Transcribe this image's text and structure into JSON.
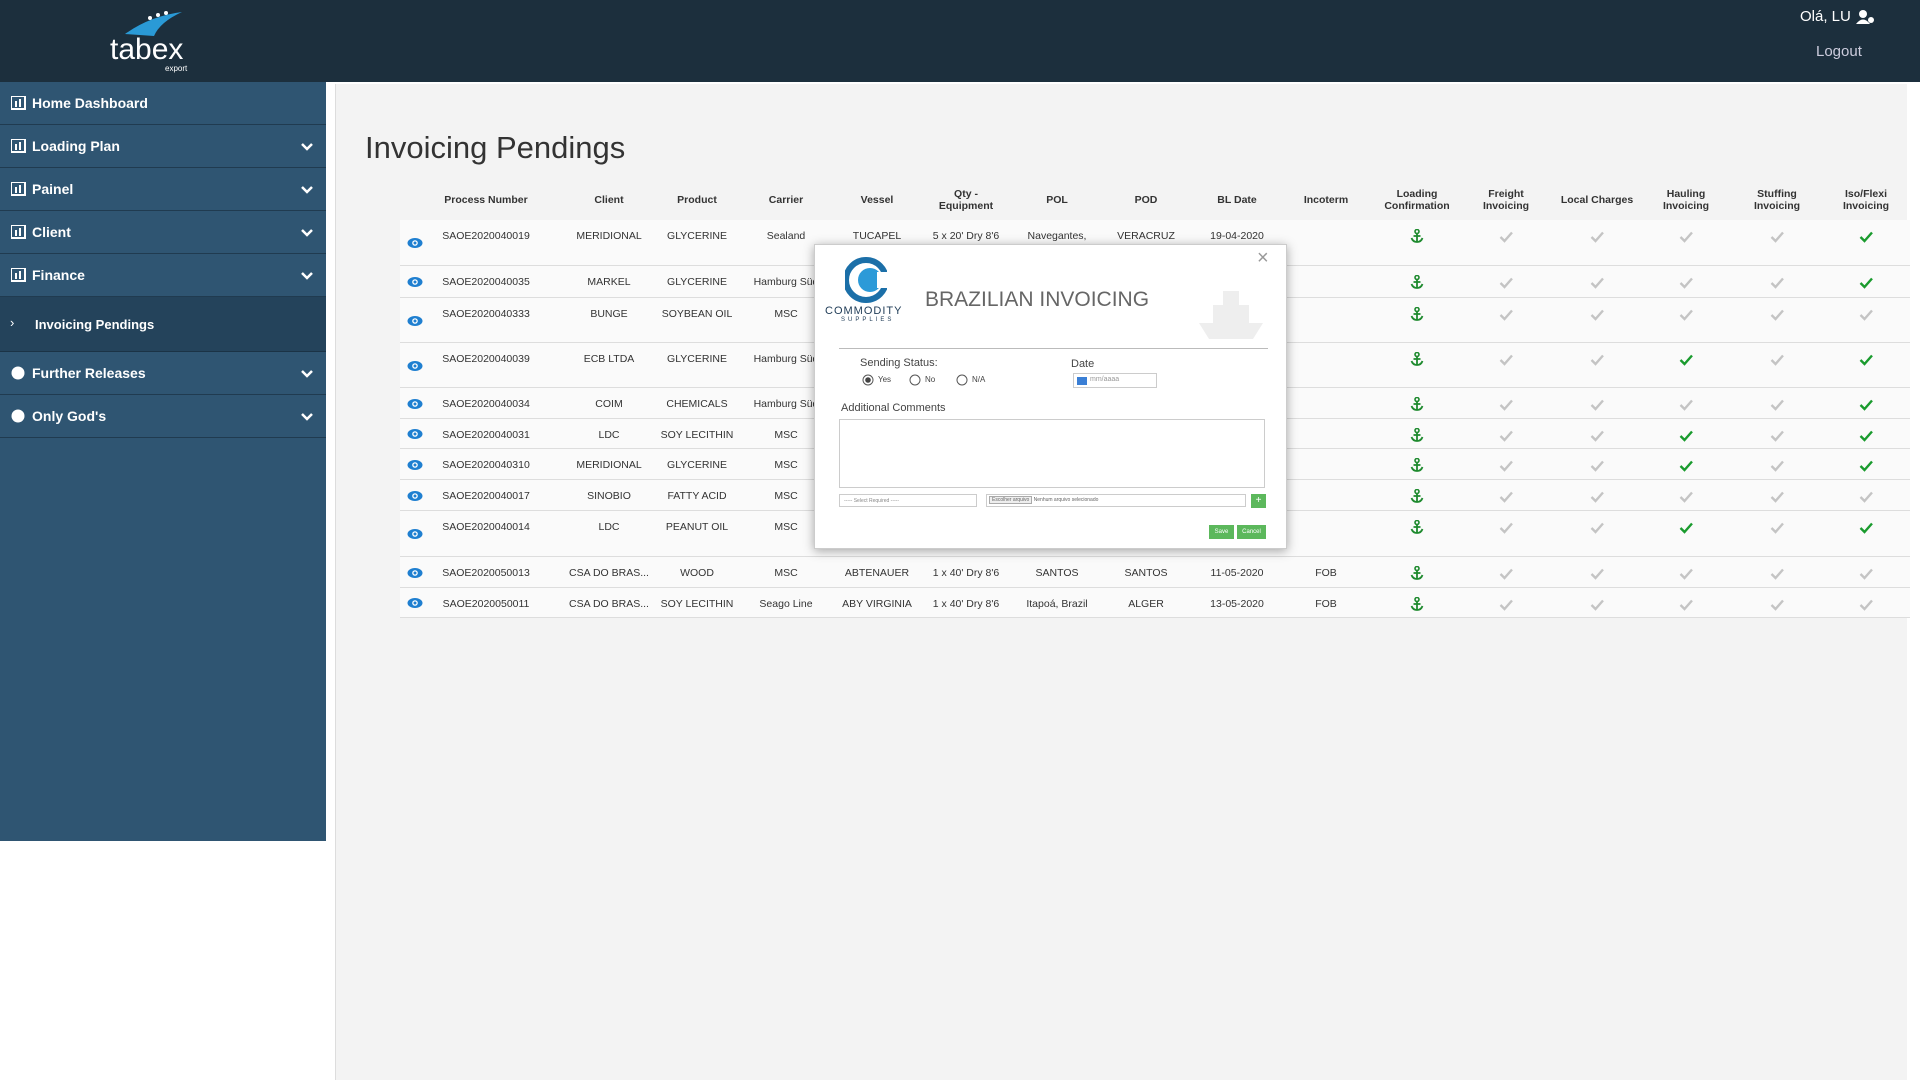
{
  "header": {
    "logo": "tabex",
    "logo_sub": "export",
    "greeting": "Olá, LU",
    "logout": "Logout"
  },
  "sidebar": {
    "items": [
      "Home Dashboard",
      "Loading Plan",
      "Painel",
      "Client",
      "Finance"
    ],
    "submenu": "Invoicing Pendings",
    "items_after": [
      "Further Releases",
      "Only God's"
    ]
  },
  "page": {
    "title": "Invoicing Pendings"
  },
  "table": {
    "columns": [
      "Process Number",
      "Client",
      "Product",
      "Carrier",
      "Vessel",
      "Qty - Equipment",
      "POL",
      "POD",
      "BL Date",
      "Incoterm",
      "Loading Confirmation",
      "Freight Invoicing",
      "Local Charges",
      "Hauling Invoicing",
      "Stuffing Invoicing",
      "Iso/Flexi Invoicing"
    ],
    "rows": [
      {
        "cells": [
          "SAOE2020040019",
          "MERIDIONAL",
          "GLYCERINE",
          "Sealand",
          "TUCAPEL",
          "5 x 20' Dry 8'6",
          "Navegantes,",
          "VERACRUZ",
          "19-04-2020",
          null
        ],
        "checks": [
          false,
          false,
          false,
          false,
          true
        ]
      },
      {
        "cells": [
          "SAOE2020040035",
          "MARKEL",
          "GLYCERINE",
          "Hamburg Süd",
          null,
          null,
          null,
          null,
          null,
          null
        ],
        "checks": [
          false,
          false,
          false,
          false,
          true
        ]
      },
      {
        "cells": [
          "SAOE2020040333",
          "BUNGE",
          "SOYBEAN OIL",
          "MSC",
          null,
          null,
          null,
          null,
          null,
          null
        ],
        "checks": [
          false,
          false,
          false,
          false,
          false
        ]
      },
      {
        "cells": [
          "SAOE2020040039",
          "ECB LTDA",
          "GLYCERINE",
          "Hamburg Süd",
          null,
          null,
          null,
          null,
          null,
          null
        ],
        "checks": [
          false,
          false,
          true,
          false,
          true
        ]
      },
      {
        "cells": [
          "SAOE2020040034",
          "COIM",
          "CHEMICALS",
          "Hamburg Süd",
          null,
          null,
          null,
          null,
          null,
          null
        ],
        "checks": [
          false,
          false,
          false,
          false,
          true
        ]
      },
      {
        "cells": [
          "SAOE2020040031",
          "LDC",
          "SOY LECITHIN",
          "MSC",
          null,
          null,
          null,
          null,
          null,
          null
        ],
        "checks": [
          false,
          false,
          true,
          false,
          true
        ]
      },
      {
        "cells": [
          "SAOE2020040310",
          "MERIDIONAL",
          "GLYCERINE",
          "MSC",
          null,
          null,
          null,
          null,
          null,
          null
        ],
        "checks": [
          false,
          false,
          true,
          false,
          true
        ]
      },
      {
        "cells": [
          "SAOE2020040017",
          "SINOBIO",
          "FATTY ACID",
          "MSC",
          null,
          null,
          null,
          null,
          null,
          null
        ],
        "checks": [
          false,
          false,
          false,
          false,
          false
        ]
      },
      {
        "cells": [
          "SAOE2020040014",
          "LDC",
          "PEANUT OIL",
          "MSC",
          null,
          null,
          null,
          null,
          null,
          null
        ],
        "checks": [
          false,
          false,
          true,
          false,
          true
        ]
      },
      {
        "cells": [
          "SAOE2020050013",
          "CSA DO BRAS...",
          "WOOD",
          "MSC",
          "ABTENAUER",
          "1 x 40' Dry 8'6",
          "SANTOS",
          "SANTOS",
          "11-05-2020",
          "FOB"
        ],
        "checks": [
          false,
          false,
          false,
          false,
          false
        ]
      },
      {
        "cells": [
          "SAOE2020050011",
          "CSA DO BRAS...",
          "SOY LECITHIN",
          "Seago Line",
          "ABY VIRGINIA",
          "1 x 40' Dry 8'6",
          "Itapoá, Brazil",
          "ALGER",
          "13-05-2020",
          "FOB"
        ],
        "checks": [
          false,
          false,
          false,
          false,
          false
        ]
      }
    ]
  },
  "modal": {
    "close": "×",
    "logo": "COMMODITY",
    "logo_sub": "SUPPLIES",
    "title": "BRAZILIAN INVOICING",
    "status_label": "Sending Status:",
    "options": [
      "Yes",
      "No",
      "N/A"
    ],
    "date_label": "Date",
    "date_placeholder": "mm/aaaa",
    "comments_label": "Additional Comments",
    "select": "----- Select Required -----",
    "file_button": "Escolher arquivo",
    "file_text": "Nenhum arquivo selecionado",
    "add": "+",
    "save": "Save",
    "cancel": "Cancel"
  }
}
